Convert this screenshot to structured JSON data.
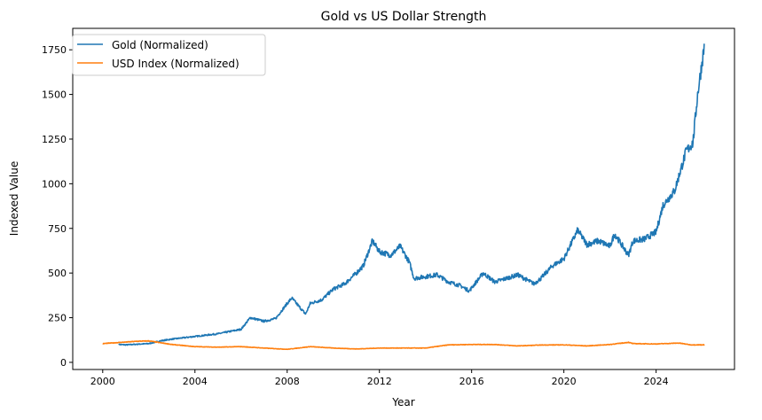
{
  "chart_data": {
    "type": "line",
    "title": "Gold vs US Dollar Strength",
    "xlabel": "Year",
    "ylabel": "Indexed Value",
    "xlim": [
      1998.7,
      2027.4
    ],
    "ylim": [
      -40,
      1870
    ],
    "xticks": [
      2000,
      2004,
      2008,
      2012,
      2016,
      2020,
      2024
    ],
    "yticks": [
      0,
      250,
      500,
      750,
      1000,
      1250,
      1500,
      1750
    ],
    "grid": false,
    "legend": "top-left",
    "series": [
      {
        "name": "Gold (Normalized)",
        "color": "#1f77b4",
        "x": [
          2000.7,
          2001.0,
          2002.0,
          2002.5,
          2003.0,
          2004.0,
          2005.0,
          2006.0,
          2006.4,
          2007.0,
          2007.5,
          2008.0,
          2008.2,
          2008.8,
          2009.0,
          2009.5,
          2010.0,
          2010.5,
          2011.0,
          2011.3,
          2011.7,
          2012.0,
          2012.5,
          2012.9,
          2013.3,
          2013.5,
          2014.0,
          2014.5,
          2015.0,
          2015.5,
          2015.9,
          2016.5,
          2017.0,
          2017.5,
          2018.0,
          2018.7,
          2019.0,
          2019.5,
          2020.0,
          2020.6,
          2021.0,
          2021.5,
          2022.0,
          2022.2,
          2022.8,
          2023.0,
          2023.5,
          2024.0,
          2024.3,
          2024.8,
          2025.3,
          2025.6,
          2025.8,
          2026.1
        ],
        "y": [
          100,
          98,
          105,
          120,
          130,
          145,
          160,
          185,
          250,
          230,
          245,
          330,
          360,
          270,
          330,
          350,
          410,
          440,
          500,
          540,
          680,
          620,
          600,
          650,
          560,
          470,
          480,
          490,
          450,
          430,
          400,
          500,
          450,
          470,
          490,
          440,
          470,
          540,
          580,
          740,
          660,
          680,
          650,
          720,
          600,
          680,
          690,
          730,
          880,
          960,
          1180,
          1230,
          1500,
          1780
        ]
      },
      {
        "name": "USD Index (Normalized)",
        "color": "#ff7f0e",
        "x": [
          2000.0,
          2001.5,
          2002.0,
          2003.0,
          2004.0,
          2005.0,
          2006.0,
          2007.0,
          2008.0,
          2009.0,
          2010.0,
          2011.0,
          2012.0,
          2013.0,
          2014.0,
          2015.0,
          2016.0,
          2017.0,
          2018.0,
          2019.0,
          2020.0,
          2021.0,
          2022.0,
          2022.8,
          2023.0,
          2024.0,
          2025.0,
          2025.5,
          2026.1
        ],
        "y": [
          105,
          118,
          120,
          100,
          88,
          85,
          88,
          80,
          73,
          88,
          80,
          75,
          80,
          80,
          80,
          98,
          100,
          100,
          92,
          97,
          98,
          92,
          100,
          112,
          105,
          103,
          108,
          98,
          98
        ]
      }
    ]
  }
}
